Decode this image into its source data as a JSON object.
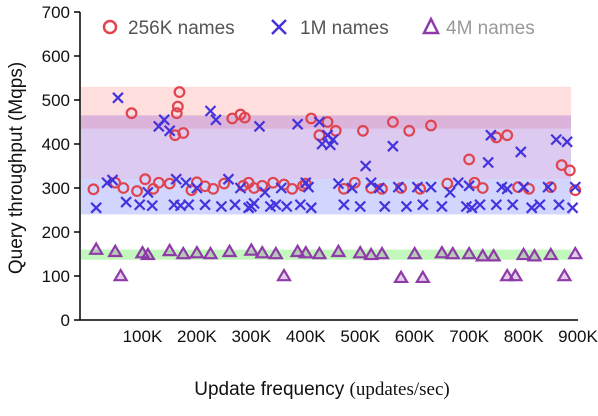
{
  "chart_data": {
    "type": "scatter",
    "xlabel": "Update frequency",
    "xlabel_unit": "(updates/sec)",
    "ylabel": "Query throughput (Mqps)",
    "xlim": [
      0,
      900000
    ],
    "ylim": [
      0,
      700
    ],
    "x_ticks": [
      100000,
      200000,
      300000,
      400000,
      500000,
      600000,
      700000,
      800000,
      900000
    ],
    "x_tick_labels": [
      "100K",
      "200K",
      "300K",
      "400K",
      "500K",
      "600K",
      "700K",
      "800K",
      "900K"
    ],
    "y_ticks": [
      0,
      100,
      200,
      300,
      400,
      500,
      600,
      700
    ],
    "y_tick_labels": [
      "0",
      "100",
      "200",
      "300",
      "400",
      "500",
      "600",
      "700"
    ],
    "grid": false,
    "legend_position": "top",
    "bands": [
      {
        "from": 435,
        "to": 530,
        "color": "#ff6b6b",
        "opacity": 0.22
      },
      {
        "from": 320,
        "to": 465,
        "color": "#8a4fd0",
        "opacity": 0.3
      },
      {
        "from": 240,
        "to": 320,
        "color": "#5d6bff",
        "opacity": 0.28
      },
      {
        "from": 137,
        "to": 160,
        "color": "#66ee55",
        "opacity": 0.4
      }
    ],
    "series": [
      {
        "name": "256K names",
        "marker": "circle",
        "color": "#e0444f",
        "points": [
          [
            10000,
            297
          ],
          [
            50000,
            312
          ],
          [
            65000,
            300
          ],
          [
            80000,
            470
          ],
          [
            90000,
            293
          ],
          [
            105000,
            320
          ],
          [
            120000,
            298
          ],
          [
            130000,
            312
          ],
          [
            150000,
            310
          ],
          [
            160000,
            420
          ],
          [
            163000,
            470
          ],
          [
            165000,
            485
          ],
          [
            168000,
            518
          ],
          [
            175000,
            425
          ],
          [
            190000,
            295
          ],
          [
            200000,
            313
          ],
          [
            215000,
            304
          ],
          [
            230000,
            298
          ],
          [
            250000,
            310
          ],
          [
            265000,
            458
          ],
          [
            280000,
            467
          ],
          [
            285000,
            305
          ],
          [
            288000,
            460
          ],
          [
            295000,
            312
          ],
          [
            305000,
            300
          ],
          [
            320000,
            305
          ],
          [
            340000,
            312
          ],
          [
            360000,
            308
          ],
          [
            375000,
            298
          ],
          [
            395000,
            305
          ],
          [
            400000,
            310
          ],
          [
            410000,
            458
          ],
          [
            425000,
            420
          ],
          [
            440000,
            450
          ],
          [
            455000,
            430
          ],
          [
            470000,
            298
          ],
          [
            490000,
            312
          ],
          [
            505000,
            430
          ],
          [
            520000,
            300
          ],
          [
            540000,
            298
          ],
          [
            560000,
            450
          ],
          [
            575000,
            300
          ],
          [
            590000,
            430
          ],
          [
            610000,
            298
          ],
          [
            630000,
            442
          ],
          [
            660000,
            310
          ],
          [
            700000,
            365
          ],
          [
            710000,
            312
          ],
          [
            725000,
            300
          ],
          [
            750000,
            415
          ],
          [
            770000,
            420
          ],
          [
            790000,
            302
          ],
          [
            810000,
            298
          ],
          [
            850000,
            302
          ],
          [
            870000,
            352
          ],
          [
            885000,
            340
          ],
          [
            895000,
            295
          ]
        ]
      },
      {
        "name": "1M names",
        "marker": "x",
        "color": "#4433dd",
        "points": [
          [
            15000,
            255
          ],
          [
            35000,
            312
          ],
          [
            45000,
            318
          ],
          [
            55000,
            505
          ],
          [
            70000,
            268
          ],
          [
            95000,
            262
          ],
          [
            110000,
            290
          ],
          [
            118000,
            260
          ],
          [
            130000,
            440
          ],
          [
            140000,
            455
          ],
          [
            150000,
            430
          ],
          [
            158000,
            262
          ],
          [
            162000,
            320
          ],
          [
            170000,
            260
          ],
          [
            180000,
            312
          ],
          [
            185000,
            262
          ],
          [
            200000,
            300
          ],
          [
            215000,
            262
          ],
          [
            225000,
            475
          ],
          [
            235000,
            455
          ],
          [
            245000,
            258
          ],
          [
            258000,
            320
          ],
          [
            270000,
            262
          ],
          [
            280000,
            300
          ],
          [
            295000,
            255
          ],
          [
            300000,
            258
          ],
          [
            305000,
            265
          ],
          [
            315000,
            440
          ],
          [
            325000,
            290
          ],
          [
            335000,
            258
          ],
          [
            345000,
            262
          ],
          [
            355000,
            300
          ],
          [
            365000,
            258
          ],
          [
            385000,
            445
          ],
          [
            390000,
            262
          ],
          [
            400000,
            312
          ],
          [
            405000,
            302
          ],
          [
            410000,
            255
          ],
          [
            425000,
            450
          ],
          [
            430000,
            400
          ],
          [
            440000,
            420
          ],
          [
            445000,
            398
          ],
          [
            450000,
            410
          ],
          [
            460000,
            310
          ],
          [
            470000,
            262
          ],
          [
            485000,
            300
          ],
          [
            500000,
            258
          ],
          [
            510000,
            350
          ],
          [
            520000,
            312
          ],
          [
            535000,
            300
          ],
          [
            545000,
            258
          ],
          [
            560000,
            395
          ],
          [
            570000,
            302
          ],
          [
            585000,
            258
          ],
          [
            605000,
            302
          ],
          [
            615000,
            262
          ],
          [
            630000,
            302
          ],
          [
            650000,
            258
          ],
          [
            665000,
            290
          ],
          [
            680000,
            312
          ],
          [
            695000,
            258
          ],
          [
            700000,
            305
          ],
          [
            705000,
            255
          ],
          [
            720000,
            262
          ],
          [
            735000,
            358
          ],
          [
            740000,
            420
          ],
          [
            750000,
            262
          ],
          [
            760000,
            302
          ],
          [
            770000,
            298
          ],
          [
            780000,
            262
          ],
          [
            795000,
            382
          ],
          [
            800000,
            302
          ],
          [
            815000,
            255
          ],
          [
            830000,
            262
          ],
          [
            845000,
            302
          ],
          [
            860000,
            410
          ],
          [
            865000,
            262
          ],
          [
            880000,
            405
          ],
          [
            890000,
            255
          ],
          [
            895000,
            302
          ]
        ]
      },
      {
        "name": "4M names",
        "marker": "triangle",
        "color": "#8e3aa8",
        "points": [
          [
            15000,
            160
          ],
          [
            50000,
            155
          ],
          [
            60000,
            100
          ],
          [
            100000,
            152
          ],
          [
            110000,
            148
          ],
          [
            150000,
            157
          ],
          [
            175000,
            150
          ],
          [
            200000,
            152
          ],
          [
            225000,
            150
          ],
          [
            260000,
            155
          ],
          [
            300000,
            158
          ],
          [
            320000,
            152
          ],
          [
            345000,
            150
          ],
          [
            360000,
            100
          ],
          [
            385000,
            155
          ],
          [
            400000,
            152
          ],
          [
            425000,
            150
          ],
          [
            460000,
            155
          ],
          [
            500000,
            152
          ],
          [
            520000,
            148
          ],
          [
            540000,
            150
          ],
          [
            575000,
            96
          ],
          [
            600000,
            150
          ],
          [
            615000,
            96
          ],
          [
            650000,
            152
          ],
          [
            670000,
            150
          ],
          [
            700000,
            150
          ],
          [
            725000,
            145
          ],
          [
            745000,
            145
          ],
          [
            770000,
            100
          ],
          [
            785000,
            100
          ],
          [
            800000,
            148
          ],
          [
            820000,
            145
          ],
          [
            850000,
            148
          ],
          [
            875000,
            100
          ],
          [
            895000,
            150
          ]
        ]
      }
    ]
  }
}
